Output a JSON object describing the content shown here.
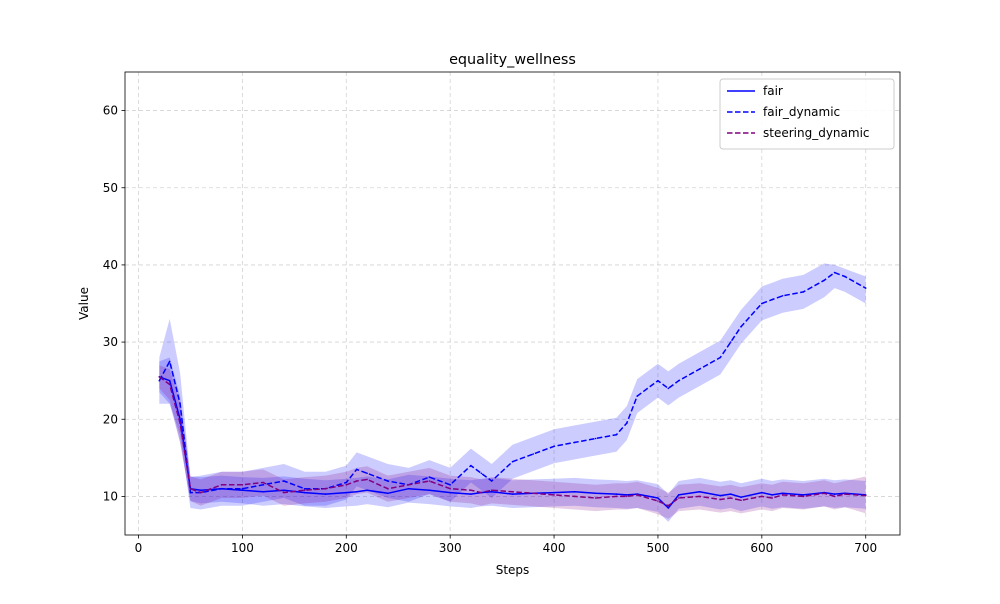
{
  "chart_data": {
    "type": "line",
    "title": "equality_wellness",
    "xlabel": "Steps",
    "ylabel": "Value",
    "xlim": [
      -13,
      733
    ],
    "ylim": [
      5,
      65
    ],
    "xticks": [
      0,
      100,
      200,
      300,
      400,
      500,
      600,
      700
    ],
    "yticks": [
      10,
      20,
      30,
      40,
      50,
      60
    ],
    "grid": true,
    "legend_position": "upper right",
    "x": [
      20,
      30,
      40,
      50,
      60,
      80,
      100,
      120,
      140,
      160,
      180,
      200,
      210,
      220,
      240,
      260,
      280,
      300,
      320,
      330,
      340,
      360,
      380,
      400,
      420,
      440,
      460,
      470,
      480,
      500,
      510,
      520,
      540,
      560,
      570,
      580,
      600,
      610,
      620,
      640,
      660,
      670,
      680,
      700
    ],
    "series": [
      {
        "name": "fair",
        "color": "#0000ff",
        "linestyle": "solid",
        "values": [
          25.5,
          25.0,
          20.0,
          11.0,
          10.8,
          11.0,
          10.8,
          10.6,
          10.8,
          10.5,
          10.3,
          10.5,
          10.6,
          10.8,
          10.4,
          11.0,
          10.8,
          10.5,
          10.3,
          10.5,
          10.6,
          10.3,
          10.4,
          10.5,
          10.6,
          10.4,
          10.3,
          10.2,
          10.3,
          9.8,
          8.5,
          10.2,
          10.6,
          10.1,
          10.3,
          9.9,
          10.5,
          10.2,
          10.4,
          10.2,
          10.5,
          10.3,
          10.4,
          10.2
        ],
        "upper": [
          27.5,
          28.0,
          23.0,
          12.6,
          12.5,
          12.7,
          12.5,
          12.4,
          12.6,
          12.3,
          12.1,
          12.3,
          12.4,
          12.6,
          12.2,
          12.8,
          12.6,
          12.3,
          12.1,
          12.3,
          12.4,
          12.1,
          12.2,
          12.3,
          12.4,
          12.2,
          12.1,
          12.0,
          12.1,
          11.6,
          10.3,
          12.0,
          12.4,
          11.9,
          12.1,
          11.7,
          12.3,
          12.0,
          12.2,
          12.0,
          12.3,
          12.1,
          12.2,
          12.0
        ],
        "lower": [
          23.5,
          22.0,
          17.0,
          9.4,
          9.1,
          9.3,
          9.1,
          8.8,
          9.0,
          8.7,
          8.5,
          8.7,
          8.8,
          9.0,
          8.6,
          9.2,
          9.0,
          8.7,
          8.5,
          8.7,
          8.8,
          8.5,
          8.6,
          8.7,
          8.8,
          8.6,
          8.5,
          8.4,
          8.5,
          8.0,
          6.7,
          8.4,
          8.8,
          8.3,
          8.5,
          8.1,
          8.7,
          8.4,
          8.6,
          8.4,
          8.7,
          8.5,
          8.6,
          8.4
        ]
      },
      {
        "name": "fair_dynamic",
        "color": "#0000ff",
        "linestyle": "dashed",
        "values": [
          25.0,
          27.5,
          22.0,
          10.5,
          10.5,
          11.0,
          11.0,
          11.5,
          12.0,
          11.0,
          11.0,
          11.8,
          13.5,
          13.0,
          12.0,
          11.5,
          12.5,
          11.5,
          14.0,
          13.0,
          12.0,
          14.5,
          15.5,
          16.5,
          17.0,
          17.5,
          18.0,
          19.5,
          23.0,
          25.0,
          24.0,
          25.0,
          26.5,
          28.0,
          30.0,
          32.0,
          35.0,
          35.5,
          36.0,
          36.5,
          38.0,
          39.0,
          38.5,
          37.0
        ],
        "upper": [
          28.0,
          33.0,
          26.0,
          12.5,
          12.7,
          13.2,
          13.2,
          13.7,
          14.2,
          13.2,
          13.2,
          14.0,
          15.7,
          15.2,
          14.2,
          13.7,
          14.7,
          13.7,
          16.2,
          15.2,
          14.2,
          16.7,
          17.7,
          18.7,
          19.2,
          19.7,
          20.2,
          21.7,
          25.2,
          27.2,
          26.2,
          27.2,
          28.7,
          30.2,
          32.2,
          34.2,
          37.2,
          37.7,
          38.2,
          38.7,
          40.2,
          40.0,
          39.5,
          38.5
        ],
        "lower": [
          22.0,
          22.0,
          18.0,
          8.5,
          8.3,
          8.8,
          8.8,
          9.3,
          9.8,
          8.8,
          8.8,
          9.6,
          11.3,
          10.8,
          9.8,
          9.3,
          10.3,
          9.3,
          11.8,
          10.8,
          9.8,
          12.3,
          13.3,
          14.3,
          14.8,
          15.3,
          15.8,
          17.3,
          20.8,
          22.8,
          21.8,
          22.8,
          24.3,
          25.8,
          27.8,
          29.8,
          32.8,
          33.3,
          33.8,
          34.3,
          35.8,
          37.0,
          36.5,
          35.0
        ]
      },
      {
        "name": "steering_dynamic",
        "color": "#800080",
        "linestyle": "dashed",
        "values": [
          25.5,
          24.5,
          19.5,
          11.0,
          10.5,
          11.5,
          11.5,
          11.8,
          10.5,
          10.8,
          11.0,
          11.5,
          12.0,
          12.2,
          11.0,
          11.5,
          12.0,
          11.0,
          10.8,
          10.5,
          10.8,
          10.6,
          10.4,
          10.2,
          10.0,
          9.8,
          10.0,
          10.0,
          10.2,
          9.4,
          8.8,
          9.8,
          10.0,
          9.6,
          9.8,
          9.5,
          10.0,
          9.8,
          10.2,
          10.0,
          10.4,
          10.0,
          10.3,
          10.1
        ],
        "upper": [
          27.0,
          26.5,
          22.0,
          12.6,
          12.2,
          13.2,
          13.2,
          13.5,
          12.2,
          12.5,
          12.7,
          13.2,
          13.7,
          13.9,
          12.7,
          13.2,
          13.7,
          12.7,
          12.5,
          12.2,
          12.5,
          12.3,
          12.1,
          11.9,
          11.7,
          11.5,
          11.7,
          11.7,
          11.9,
          11.1,
          10.5,
          11.5,
          11.7,
          11.3,
          11.5,
          11.2,
          11.7,
          11.5,
          11.9,
          11.7,
          12.1,
          11.7,
          12.0,
          12.6
        ],
        "lower": [
          24.0,
          22.5,
          17.0,
          9.4,
          8.8,
          9.8,
          9.8,
          10.1,
          8.8,
          9.1,
          9.3,
          9.8,
          10.3,
          10.5,
          9.3,
          9.8,
          10.3,
          9.3,
          9.1,
          8.8,
          9.1,
          8.9,
          8.7,
          8.5,
          8.3,
          8.1,
          8.3,
          8.3,
          8.5,
          7.7,
          7.1,
          8.1,
          8.3,
          7.9,
          8.1,
          7.8,
          8.3,
          8.1,
          8.5,
          8.3,
          8.7,
          8.3,
          8.6,
          7.8
        ]
      }
    ]
  }
}
